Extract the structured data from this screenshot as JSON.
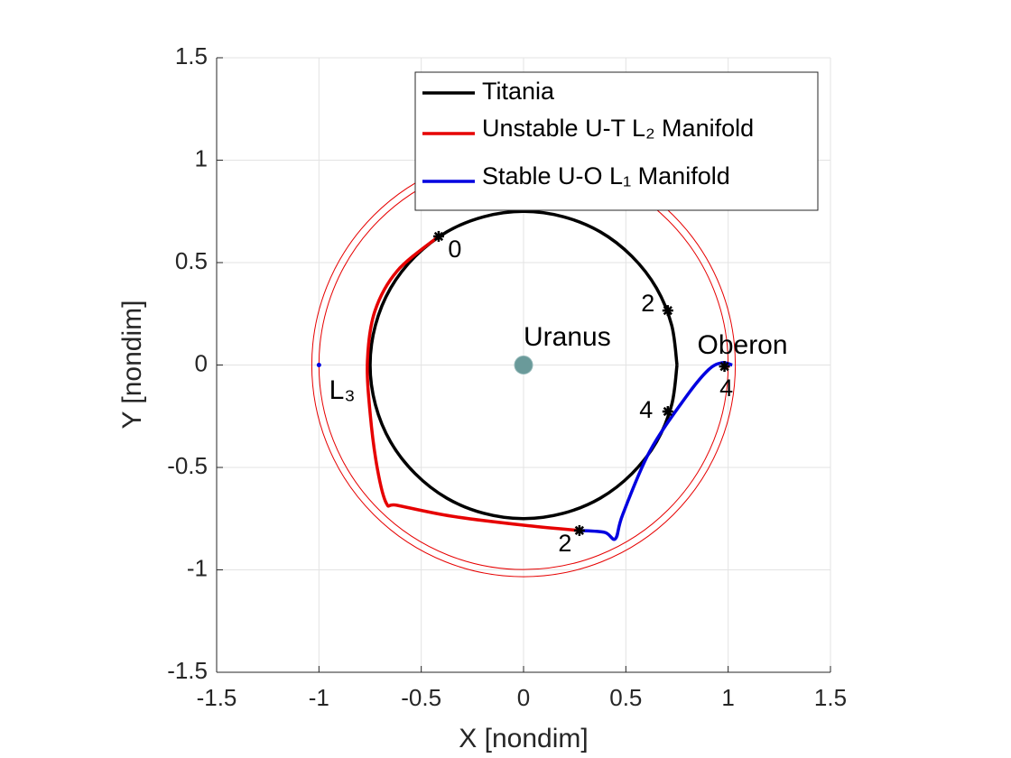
{
  "chart_data": {
    "type": "line",
    "xlabel": "X [nondim]",
    "ylabel": "Y [nondim]",
    "xlim": [
      -1.5,
      1.5
    ],
    "ylim": [
      -1.5,
      1.5
    ],
    "xticks": [
      -1.5,
      -1,
      -0.5,
      0,
      0.5,
      1,
      1.5
    ],
    "yticks": [
      -1.5,
      -1,
      -0.5,
      0,
      0.5,
      1,
      1.5
    ],
    "grid": true,
    "legend": "northeast",
    "series": [
      {
        "name": "Titania",
        "color": "#000000",
        "x": [
          0.75,
          0.724,
          0.65,
          0.53,
          0.375,
          0.194,
          0,
          -0.194,
          -0.375,
          -0.53,
          -0.65,
          -0.724,
          -0.75,
          -0.724,
          -0.65,
          -0.53,
          -0.375,
          -0.194,
          0,
          0.194,
          0.375,
          0.53,
          0.65,
          0.724,
          0.75
        ],
        "values": [
          0,
          0.194,
          0.375,
          0.53,
          0.65,
          0.724,
          0.75,
          0.724,
          0.65,
          0.53,
          0.375,
          0.194,
          0,
          -0.194,
          -0.375,
          -0.53,
          -0.65,
          -0.724,
          -0.75,
          -0.724,
          -0.65,
          -0.53,
          -0.375,
          -0.194,
          0
        ]
      },
      {
        "name": "Unstable U-T L₂ Manifold",
        "color": "#e60000",
        "x": [
          -0.415,
          -0.617,
          -0.727,
          -0.763,
          -0.749,
          -0.714,
          -0.67,
          -0.617,
          -0.352,
          0,
          0.273
        ],
        "values": [
          0.628,
          0.46,
          0.262,
          0.02,
          -0.244,
          -0.509,
          -0.676,
          -0.685,
          -0.738,
          -0.782,
          -0.808
        ]
      },
      {
        "name": "Stable U-O L₁ Manifold",
        "color": "#0000e0",
        "x": [
          0.273,
          0.396,
          0.449,
          0.485,
          0.617,
          0.793,
          0.903,
          0.97,
          1.02
        ],
        "values": [
          -0.808,
          -0.817,
          -0.848,
          -0.729,
          -0.421,
          -0.157,
          -0.024,
          0.011,
          0
        ]
      }
    ],
    "circles": [
      {
        "x": 0,
        "y": 0,
        "r": 1.035,
        "color": "#e60000"
      },
      {
        "x": 0,
        "y": 0,
        "r": 1.0,
        "color": "#e60000"
      }
    ],
    "points": [
      {
        "x": 0,
        "y": 0,
        "color": "#6a9a9a",
        "label": "Uranus",
        "label_x": 0.0,
        "label_y": 0.13
      },
      {
        "x": -1,
        "y": 0,
        "color": "#0000e0",
        "label": "L₃",
        "label_x": -0.95,
        "label_y": -0.13
      }
    ],
    "annotations": [
      {
        "text": "Oberon",
        "x": 1.07,
        "y": 0.09
      }
    ],
    "markers": [
      {
        "x": -0.415,
        "y": 0.628,
        "label": "0",
        "dx": 18,
        "dy": 16
      },
      {
        "x": 0.705,
        "y": 0.266,
        "label": "2",
        "dx": -22,
        "dy": -6
      },
      {
        "x": 0.705,
        "y": -0.227,
        "label": "4",
        "dx": -24,
        "dy": 0
      },
      {
        "x": 0.273,
        "y": -0.808,
        "label": "2",
        "dx": -16,
        "dy": 16
      },
      {
        "x": 0.982,
        "y": -0.007,
        "label": "4",
        "dx": 2,
        "dy": 26
      }
    ]
  }
}
